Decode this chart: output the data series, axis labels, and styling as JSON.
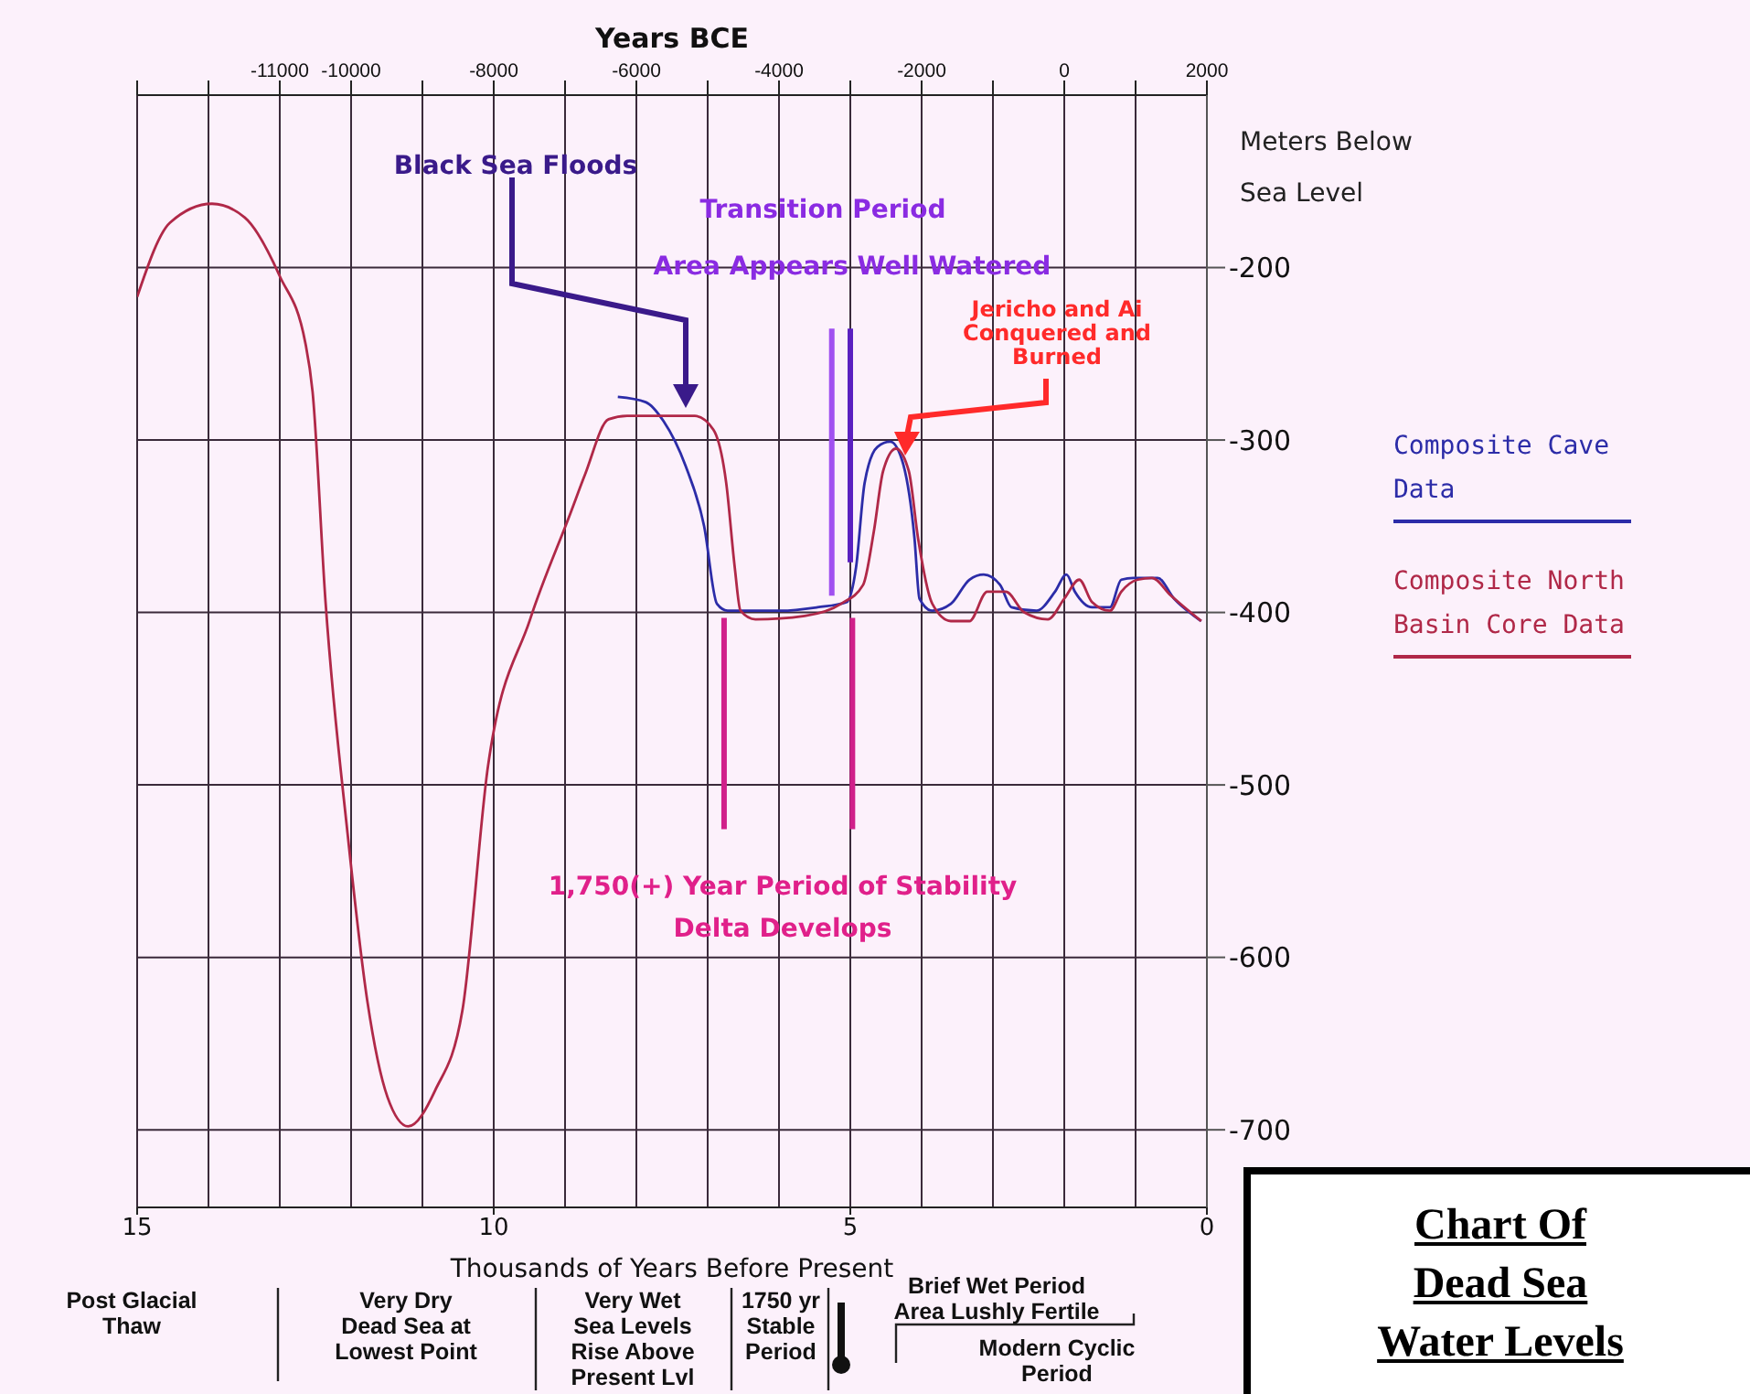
{
  "chart_data": {
    "type": "line",
    "title": "Chart Of\nDead Sea\nWater Levels",
    "xlabel": "Years BCE",
    "ylabel": "Meters Below\nSea Level",
    "x2label": "Thousands of Years Before Present",
    "xlim": [
      -13000,
      2000
    ],
    "xticks": [
      {
        "value": -13000,
        "label": null
      },
      {
        "value": -12000,
        "label": null
      },
      -11000,
      -10000,
      {
        "value": -9000,
        "label": null
      },
      -8000,
      {
        "value": -7000,
        "label": null
      },
      -6000,
      {
        "value": -5000,
        "label": null
      },
      -4000,
      {
        "value": -3000,
        "label": null
      },
      -2000,
      {
        "value": -1000,
        "label": null
      },
      0,
      {
        "value": 1000,
        "label": null
      },
      2000
    ],
    "x2lim": [
      15,
      0
    ],
    "x2ticks": [
      15,
      10,
      5,
      0
    ],
    "ylim": [
      -745,
      -100
    ],
    "yticks": [
      -200,
      -300,
      -400,
      -500,
      -600,
      -700
    ],
    "grid": true,
    "legend": "right",
    "marker": "none",
    "line_style": "solid",
    "series": [
      {
        "name": "Composite Cave Data",
        "color": "#2c2ca8",
        "x": [
          -6260,
          -5870,
          -5620,
          -5310,
          -5050,
          -4870,
          -4720,
          -3970,
          -3460,
          -3050,
          -2920,
          -2800,
          -2620,
          -2440,
          -2280,
          -2100,
          -2030,
          -1850,
          -1590,
          -1330,
          -1130,
          -900,
          -740,
          -390,
          -130,
          30,
          150,
          390,
          640,
          800,
          970,
          1310,
          1540,
          1820,
          1920
        ],
        "values": [
          -275,
          -278,
          -289,
          -315,
          -350,
          -395,
          -399,
          -399,
          -397,
          -394,
          -374,
          -325,
          -304,
          -301,
          -311,
          -357,
          -392,
          -399,
          -395,
          -381,
          -378,
          -384,
          -397,
          -399,
          -388,
          -378,
          -388,
          -397,
          -397,
          -381,
          -380,
          -380,
          -392,
          -402,
          -405
        ]
      },
      {
        "name": "Composite North Basin Core Data",
        "color": "#b02848",
        "x": [
          -13000,
          -12540,
          -11950,
          -11490,
          -11000,
          -10640,
          -10540,
          -10360,
          -10050,
          -9770,
          -9490,
          -9200,
          -8820,
          -8440,
          -8080,
          -7490,
          -6920,
          -6720,
          -6390,
          -6130,
          -5180,
          -4920,
          -4740,
          -4620,
          -4540,
          -4330,
          -3640,
          -3130,
          -2820,
          -2670,
          -2540,
          -2360,
          -2180,
          -2050,
          -1850,
          -1590,
          -1330,
          -1080,
          -820,
          -560,
          -230,
          0,
          210,
          390,
          640,
          800,
          1030,
          1230,
          1490,
          1920
        ],
        "values": [
          -217,
          -174,
          -163,
          -171,
          -205,
          -244,
          -272,
          -393,
          -528,
          -626,
          -681,
          -698,
          -677,
          -631,
          -489,
          -404,
          -342,
          -320,
          -288,
          -286,
          -286,
          -294,
          -325,
          -374,
          -399,
          -404,
          -402,
          -395,
          -384,
          -353,
          -318,
          -305,
          -318,
          -357,
          -395,
          -405,
          -405,
          -388,
          -388,
          -400,
          -404,
          -392,
          -381,
          -394,
          -399,
          -388,
          -381,
          -380,
          -390,
          -405
        ]
      }
    ],
    "ref_lines": [
      {
        "axis": "x",
        "value": -4770,
        "color": "#d0208a"
      },
      {
        "axis": "x",
        "value": -2970,
        "color": "#d0208a"
      },
      {
        "axis": "x",
        "value": -3260,
        "color": "#a050f0"
      },
      {
        "axis": "x",
        "value": -3000,
        "color": "#5a20c0"
      }
    ],
    "annotations": [
      "Black Sea Floods",
      "Transition Period",
      "Area Appears Well Watered",
      "Jericho and Ai\nConquered and\nBurned",
      "1,750(+) Year Period of Stability",
      "Delta Develops",
      "Post Glacial\nThaw",
      "Very Dry\nDead Sea at\nLowest Point",
      "Very Wet\nSea Levels\nRise Above\nPresent Lvl",
      "1750 yr\nStable\nPeriod",
      "Brief Wet Period\nArea Lushly Fertile",
      "Modern Cyclic\nPeriod"
    ]
  }
}
